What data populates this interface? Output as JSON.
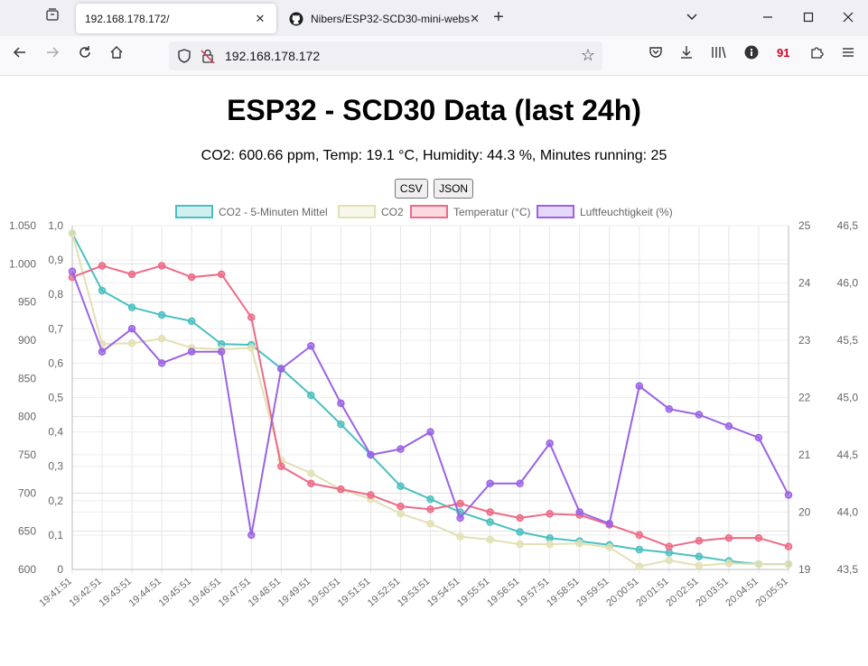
{
  "browser": {
    "tabs": [
      {
        "title": "192.168.178.172/",
        "active": true
      },
      {
        "title": "Nibers/ESP32-SCD30-mini-webs",
        "active": false
      }
    ],
    "url": "192.168.178.172"
  },
  "page": {
    "title": "ESP32 - SCD30 Data (last 24h)",
    "status": "CO2: 600.66 ppm, Temp: 19.1 °C, Humidity: 44.3 %, Minutes running: 25",
    "buttons": {
      "csv": "CSV",
      "json": "JSON"
    }
  },
  "colors": {
    "co2avg": "#4bc0c0",
    "co2": "#e2e0b4",
    "temp": "#ee6a86",
    "hum": "#9a62e6"
  },
  "chart_data": {
    "type": "line",
    "x": [
      "19:41:51",
      "19:42:51",
      "19:43:51",
      "19:44:51",
      "19:45:51",
      "19:46:51",
      "19:47:51",
      "19:48:51",
      "19:49:51",
      "19:50:51",
      "19:51:51",
      "19:52:51",
      "19:53:51",
      "19:54:51",
      "19:55:51",
      "19:56:51",
      "19:57:51",
      "19:58:51",
      "19:59:51",
      "20:00:51",
      "20:01:51",
      "20:02:51",
      "20:03:51",
      "20:04:51",
      "20:05:51"
    ],
    "axes": {
      "left1": {
        "ticks": [
          "1.050",
          "1.000",
          "950",
          "900",
          "850",
          "800",
          "750",
          "700",
          "650",
          "600"
        ],
        "range": [
          600,
          1050
        ]
      },
      "left2": {
        "ticks": [
          "1,0",
          "0,9",
          "0,8",
          "0,7",
          "0,6",
          "0,5",
          "0,4",
          "0,3",
          "0,2",
          "0,1",
          "0"
        ],
        "range": [
          0,
          1
        ]
      },
      "right1": {
        "ticks": [
          "25",
          "24",
          "23",
          "22",
          "21",
          "20",
          "19"
        ],
        "range": [
          19,
          25
        ]
      },
      "right2": {
        "ticks": [
          "46,5",
          "46,0",
          "45,5",
          "45,0",
          "44,5",
          "44,0",
          "43,5"
        ],
        "range": [
          43.5,
          46.5
        ]
      }
    },
    "series": [
      {
        "name": "CO2 - 5-Minuten Mittel",
        "axis": "left1",
        "color": "#4bc0c0",
        "values": [
          1040,
          965,
          943,
          933,
          925,
          895,
          894,
          863,
          828,
          790,
          750,
          709,
          692,
          675,
          662,
          649,
          641,
          637,
          632,
          626,
          622,
          617,
          611,
          607,
          607
        ]
      },
      {
        "name": "CO2",
        "axis": "left1",
        "color": "#e2e0b4",
        "values": [
          1040,
          895,
          896,
          902,
          890,
          888,
          890,
          743,
          726,
          705,
          692,
          673,
          660,
          643,
          639,
          633,
          633,
          634,
          629,
          604,
          612,
          605,
          608,
          607,
          607
        ]
      },
      {
        "name": "Temperatur (°C)",
        "axis": "right1",
        "color": "#ee6a86",
        "values": [
          24.1,
          24.3,
          24.15,
          24.3,
          24.1,
          24.15,
          23.4,
          20.8,
          20.5,
          20.4,
          20.3,
          20.1,
          20.05,
          20.15,
          20.0,
          19.9,
          19.97,
          19.95,
          19.78,
          19.6,
          19.4,
          19.5,
          19.55,
          19.55,
          19.4
        ]
      },
      {
        "name": "Luftfeuchtigkeit (%)",
        "axis": "right2",
        "color": "#9a62e6",
        "values": [
          46.1,
          45.4,
          45.6,
          45.3,
          45.4,
          45.4,
          43.8,
          45.25,
          45.45,
          44.95,
          44.5,
          44.55,
          44.7,
          43.95,
          44.25,
          44.25,
          44.6,
          44.0,
          43.9,
          45.1,
          44.9,
          44.85,
          44.75,
          44.65,
          44.15
        ]
      }
    ]
  }
}
